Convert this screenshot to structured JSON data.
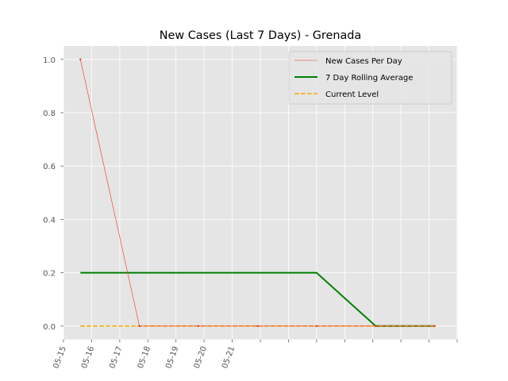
{
  "chart_data": {
    "type": "line",
    "title": "New Cases (Last 7 Days) - Grenada",
    "xlabel": "",
    "ylabel": "",
    "x_tick_labels": [
      "05-15",
      "05-16",
      "05-17",
      "05-18",
      "05-19",
      "05-20",
      "05-21",
      "",
      "",
      "",
      "",
      "",
      "",
      "",
      ""
    ],
    "ylim": [
      -0.05,
      1.05
    ],
    "y_ticks": [
      0.0,
      0.2,
      0.4,
      0.6,
      0.8,
      1.0
    ],
    "y_tick_labels": [
      "0.0",
      "0.2",
      "0.4",
      "0.6",
      "0.8",
      "1.0"
    ],
    "grid": true,
    "legend_position": "top-right",
    "series": [
      {
        "name": "New Cases Per Day",
        "color": "#e8341c",
        "style": "solid-thin-with-markers",
        "x": [
          0.6,
          2.7,
          4.8,
          6.9,
          9.0,
          11.1,
          13.2
        ],
        "y": [
          1,
          0,
          0,
          0,
          0,
          0,
          0
        ]
      },
      {
        "name": "7 Day Rolling Average",
        "color": "#008000",
        "style": "solid-thick",
        "x": [
          0.6,
          9.0,
          11.1,
          13.2
        ],
        "y": [
          0.2,
          0.2,
          0.0,
          0.0
        ]
      },
      {
        "name": "Current Level",
        "color": "#ffa500",
        "style": "dashed",
        "x": [
          0.6,
          13.2
        ],
        "y": [
          0.0,
          0.0
        ]
      }
    ]
  }
}
